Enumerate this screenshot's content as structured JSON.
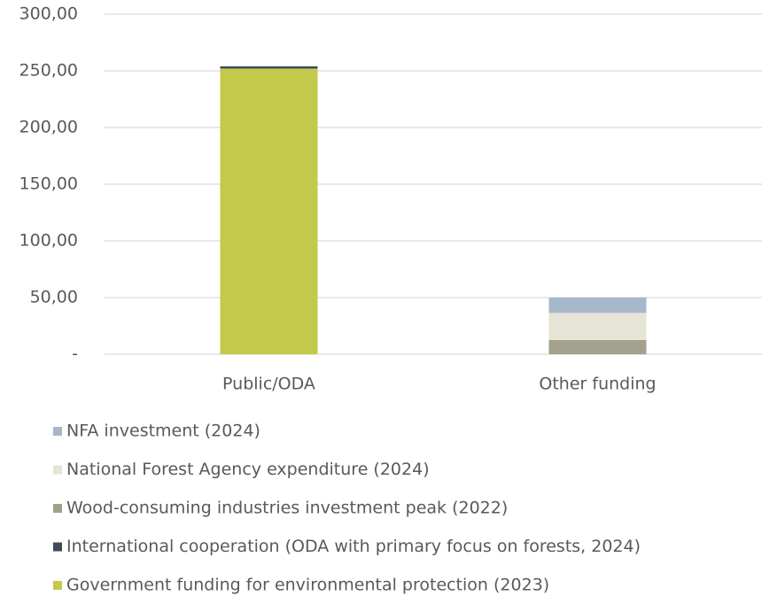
{
  "chart_data": {
    "type": "stacked_bar",
    "categories": [
      "Public/ODA",
      "Other funding"
    ],
    "series": [
      {
        "name": "Government funding for environmental protection (2023)",
        "color": "#c3c94a",
        "values": [
          252,
          0
        ]
      },
      {
        "name": "International cooperation (ODA with primary focus on forests, 2024)",
        "color": "#3e4b5b",
        "values": [
          2,
          0
        ]
      },
      {
        "name": "Wood-consuming industries investment peak (2022)",
        "color": "#a3a18c",
        "values": [
          0,
          12.5
        ]
      },
      {
        "name": "National Forest Agency expenditure (2024)",
        "color": "#e6e4d4",
        "values": [
          0,
          24
        ]
      },
      {
        "name": "NFA investment (2024)",
        "color": "#a6b7ca",
        "values": [
          0,
          13.5
        ]
      }
    ],
    "ylim": [
      0,
      300
    ],
    "yticks": [
      {
        "value": 0,
        "label": "-"
      },
      {
        "value": 50,
        "label": "50,00"
      },
      {
        "value": 100,
        "label": "100,00"
      },
      {
        "value": 150,
        "label": "150,00"
      },
      {
        "value": 200,
        "label": "200,00"
      },
      {
        "value": 250,
        "label": "250,00"
      },
      {
        "value": 300,
        "label": "300,00"
      }
    ],
    "grid": true
  }
}
